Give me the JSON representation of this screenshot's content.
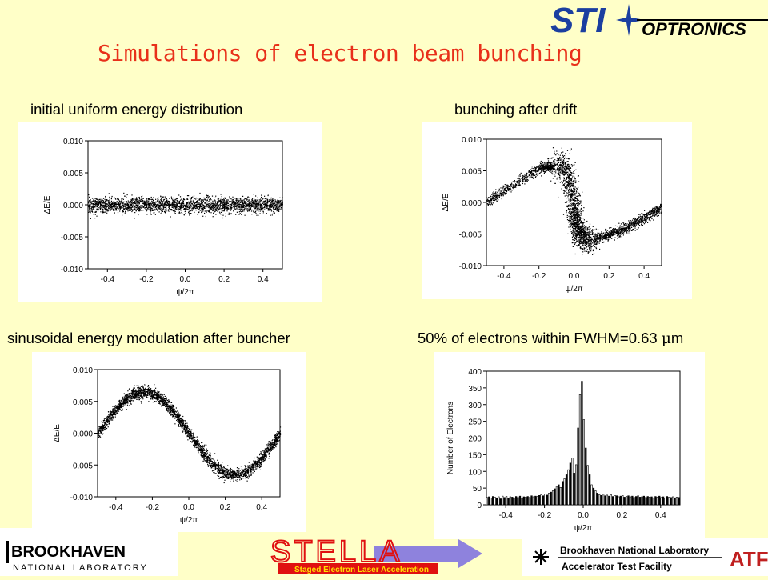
{
  "title": "Simulations of electron beam bunching",
  "logos": {
    "sti": "STI",
    "optronics": "OPTRONICS",
    "bnl_top": "BROOKHAVEN",
    "bnl_bottom": "NATIONAL LABORATORY",
    "stella": "STELLA",
    "stella_sub": "Staged Electron Laser Acceleration",
    "bnl_lab": "Brookhaven National Laboratory",
    "atf": "Accelerator Test Facility",
    "atf_mark": "ATF"
  },
  "captions": {
    "p1": "initial uniform energy distribution",
    "p2": "bunching after drift",
    "p3": "sinusoidal energy modulation after buncher",
    "p4_prefix": "50% of electrons within FWHM=0.63 ",
    "p4_mu": "μ",
    "p4_suffix": "m"
  },
  "chart_data": [
    {
      "type": "scatter",
      "title": "initial uniform energy distribution",
      "xlabel": "ψ/2π",
      "ylabel": "ΔE/E",
      "xlim": [
        -0.5,
        0.5
      ],
      "ylim": [
        -0.01,
        0.01
      ],
      "xticks": [
        "-0.4",
        "-0.2",
        "0.0",
        "0.2",
        "0.4"
      ],
      "yticks": [
        "0.010",
        "0.005",
        "0.000",
        "-0.005",
        "-0.010"
      ],
      "description_shape": "flat band",
      "series_points": [
        [
          -0.5,
          0.0
        ],
        [
          -0.25,
          0.0
        ],
        [
          0.0,
          0.0
        ],
        [
          0.25,
          0.0
        ],
        [
          0.5,
          0.0
        ]
      ],
      "spread": 0.0006
    },
    {
      "type": "scatter",
      "title": "bunching after drift",
      "xlabel": "ψ/2π",
      "ylabel": "ΔE/E",
      "xlim": [
        -0.5,
        0.5
      ],
      "ylim": [
        -0.01,
        0.01
      ],
      "xticks": [
        "-0.4",
        "-0.2",
        "0.0",
        "0.2",
        "0.4"
      ],
      "yticks": [
        "0.010",
        "0.005",
        "0.000",
        "-0.005",
        "-0.010"
      ],
      "series_points": [
        [
          -0.5,
          0.0
        ],
        [
          -0.2,
          0.0055
        ],
        [
          -0.05,
          0.006
        ],
        [
          0.0,
          -0.001
        ],
        [
          0.02,
          -0.005
        ],
        [
          0.1,
          -0.006
        ],
        [
          0.3,
          -0.004
        ],
        [
          0.5,
          -0.0007
        ]
      ],
      "spread": 0.0004
    },
    {
      "type": "scatter",
      "title": "sinusoidal energy modulation after buncher",
      "xlabel": "ψ/2π",
      "ylabel": "ΔE/E",
      "xlim": [
        -0.5,
        0.5
      ],
      "ylim": [
        -0.01,
        0.01
      ],
      "xticks": [
        "-0.4",
        "-0.2",
        "0.0",
        "0.2",
        "0.4"
      ],
      "yticks": [
        "0.010",
        "0.005",
        "0.000",
        "-0.005",
        "-0.010"
      ],
      "amplitude": 0.0065,
      "spread": 0.0005
    },
    {
      "type": "bar",
      "title": "50% of electrons within FWHM=0.63 μm",
      "xlabel": "ψ/2π",
      "ylabel": "Number of Electrons",
      "xlim": [
        -0.5,
        0.5
      ],
      "ylim": [
        0,
        400
      ],
      "xticks": [
        "-0.4",
        "-0.2",
        "0.0",
        "0.2",
        "0.4"
      ],
      "yticks": [
        "400",
        "350",
        "300",
        "250",
        "200",
        "150",
        "100",
        "50",
        "0"
      ],
      "bin_width": 0.01,
      "values": [
        22,
        24,
        20,
        25,
        23,
        21,
        24,
        18,
        26,
        22,
        25,
        20,
        24,
        23,
        21,
        25,
        22,
        26,
        20,
        24,
        23,
        25,
        22,
        27,
        24,
        26,
        25,
        28,
        30,
        27,
        32,
        29,
        35,
        38,
        42,
        48,
        55,
        60,
        52,
        70,
        78,
        90,
        105,
        125,
        140,
        95,
        120,
        230,
        330,
        370,
        255,
        170,
        118,
        90,
        60,
        50,
        42,
        35,
        30,
        28,
        32,
        27,
        29,
        26,
        30,
        25,
        28,
        27,
        24,
        26,
        28,
        23,
        25,
        27,
        24,
        26,
        22,
        25,
        27,
        23,
        24,
        26,
        22,
        25,
        23,
        24,
        21,
        25,
        23,
        26,
        22,
        24,
        20,
        25,
        23,
        22,
        24,
        21,
        23,
        22
      ]
    }
  ]
}
